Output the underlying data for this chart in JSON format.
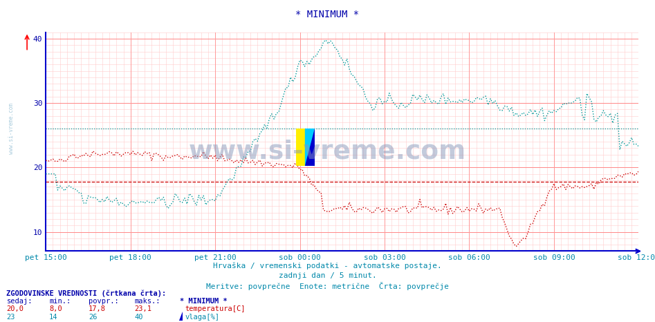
{
  "title": "* MINIMUM *",
  "bg_color": "#ffffff",
  "plot_bg_color": "#ffffff",
  "grid_color_major": "#ff9999",
  "grid_color_minor": "#ffcccc",
  "x_labels": [
    "pet 15:00",
    "pet 18:00",
    "pet 21:00",
    "sob 00:00",
    "sob 03:00",
    "sob 06:00",
    "sob 09:00",
    "sob 12:00"
  ],
  "x_ticks": [
    0,
    36,
    72,
    108,
    144,
    180,
    216,
    252
  ],
  "total_points": 252,
  "ylim": [
    7,
    41
  ],
  "yticks": [
    10,
    20,
    30,
    40
  ],
  "temp_color": "#cc0000",
  "humidity_color": "#009999",
  "temp_avg": 17.8,
  "humidity_avg": 26.0,
  "subtitle1": "Hrvaška / vremenski podatki - avtomatske postaje.",
  "subtitle2": "zadnji dan / 5 minut.",
  "subtitle3": "Meritve: povprečne  Enote: metrične  Črta: povprečje",
  "legend_title": "ZGODOVINSKE VREDNOSTI (črtkana črta):",
  "legend_headers": [
    "sedaj:",
    "min.:",
    "povpr.:",
    "maks.:",
    "* MINIMUM *"
  ],
  "temp_stats": [
    "20,0",
    "8,0",
    "17,8",
    "23,1",
    "temperatura[C]"
  ],
  "humidity_stats": [
    "23",
    "14",
    "26",
    "40",
    "vlaga[%]"
  ],
  "watermark": "www.si-vreme.com",
  "side_label": "www.si-vreme.com"
}
